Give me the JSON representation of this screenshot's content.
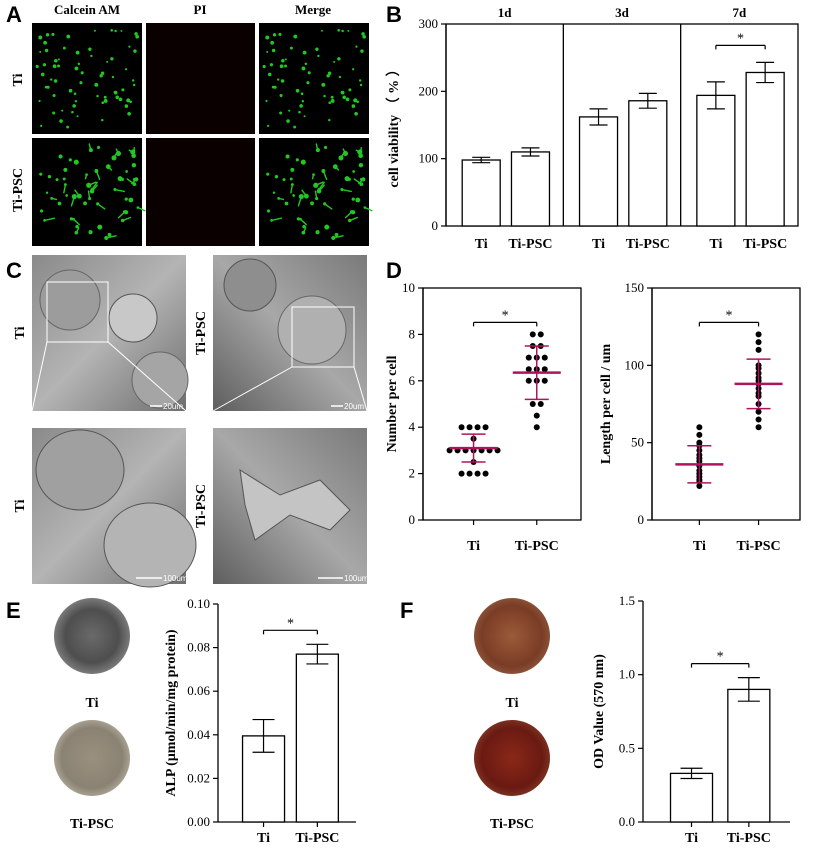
{
  "panels": {
    "A": {
      "label": "A",
      "columns": [
        "Calcein AM",
        "PI",
        "Merge"
      ],
      "rows": [
        "Ti",
        "Ti-PSC"
      ]
    },
    "C": {
      "label": "C",
      "images": [
        {
          "row_label": "Ti",
          "scale": "20um"
        },
        {
          "row_label": "Ti-PSC",
          "scale": "20um"
        },
        {
          "row_label": "Ti",
          "scale": "100um"
        },
        {
          "row_label": "Ti-PSC",
          "scale": "100um"
        }
      ]
    },
    "E_images": [
      "Ti",
      "Ti-PSC"
    ],
    "F_images": [
      "Ti",
      "Ti-PSC"
    ]
  },
  "colors": {
    "calcein_green": "#22c822",
    "magenta_mean": "#b0135e",
    "fluor_background": "#000000"
  },
  "chart_data": [
    {
      "panel": "B",
      "type": "bar",
      "title": "",
      "groups": [
        "1d",
        "3d",
        "7d"
      ],
      "categories": [
        "Ti",
        "Ti-PSC",
        "Ti",
        "Ti-PSC",
        "Ti",
        "Ti-PSC"
      ],
      "values": [
        98,
        110,
        162,
        186,
        194,
        228
      ],
      "errors": [
        4,
        6,
        12,
        11,
        20,
        15
      ],
      "xlabel": "",
      "ylabel": "cell viability （ % ）",
      "ylim": [
        0,
        300
      ],
      "yticks": [
        0,
        100,
        200,
        300
      ],
      "significance": [
        {
          "between": [
            4,
            5
          ],
          "label": "*"
        }
      ],
      "grid": false
    },
    {
      "panel": "D-left",
      "type": "scatter",
      "categories": [
        "Ti",
        "Ti-PSC"
      ],
      "points": [
        [
          4,
          4,
          4,
          4,
          3.5,
          3,
          3,
          3,
          3,
          3,
          3,
          3,
          2.5,
          2,
          2,
          2,
          2
        ],
        [
          8,
          8,
          7.5,
          7.5,
          7,
          7,
          7,
          6.5,
          6.5,
          6.5,
          6,
          6,
          6,
          5,
          5,
          4.5,
          4
        ]
      ],
      "mean": [
        3.1,
        6.35
      ],
      "sd": [
        0.6,
        1.15
      ],
      "ylabel": "Number per cell",
      "ylim": [
        0,
        10
      ],
      "yticks": [
        0,
        2,
        4,
        6,
        8,
        10
      ],
      "significance": [
        {
          "between": [
            0,
            1
          ],
          "label": "*"
        }
      ]
    },
    {
      "panel": "D-right",
      "type": "scatter",
      "categories": [
        "Ti",
        "Ti-PSC"
      ],
      "points": [
        [
          60,
          55,
          50,
          48,
          45,
          42,
          40,
          38,
          35,
          32,
          30,
          28,
          26,
          25,
          22
        ],
        [
          120,
          115,
          110,
          100,
          98,
          95,
          92,
          90,
          88,
          85,
          82,
          80,
          75,
          70,
          65,
          60
        ]
      ],
      "mean": [
        36,
        88
      ],
      "sd": [
        12,
        16
      ],
      "ylabel": "Length per cell / um",
      "ylim": [
        0,
        150
      ],
      "yticks": [
        0,
        50,
        100,
        150
      ],
      "significance": [
        {
          "between": [
            0,
            1
          ],
          "label": "*"
        }
      ]
    },
    {
      "panel": "E",
      "type": "bar",
      "categories": [
        "Ti",
        "Ti-PSC"
      ],
      "values": [
        0.0395,
        0.077
      ],
      "errors": [
        0.0075,
        0.0045
      ],
      "ylabel": "ALP (μmol/min/mg protein)",
      "ylim": [
        0,
        0.1
      ],
      "yticks": [
        "0.00",
        "0.02",
        "0.04",
        "0.06",
        "0.08",
        "0.10"
      ],
      "significance": [
        {
          "between": [
            0,
            1
          ],
          "label": "*"
        }
      ]
    },
    {
      "panel": "F",
      "type": "bar",
      "categories": [
        "Ti",
        "Ti-PSC"
      ],
      "values": [
        0.33,
        0.9
      ],
      "errors": [
        0.035,
        0.08
      ],
      "ylabel": "OD Value (570 nm)",
      "ylim": [
        0,
        1.5
      ],
      "yticks": [
        "0.0",
        "0.5",
        "1.0",
        "1.5"
      ],
      "significance": [
        {
          "between": [
            0,
            1
          ],
          "label": "*"
        }
      ]
    }
  ]
}
